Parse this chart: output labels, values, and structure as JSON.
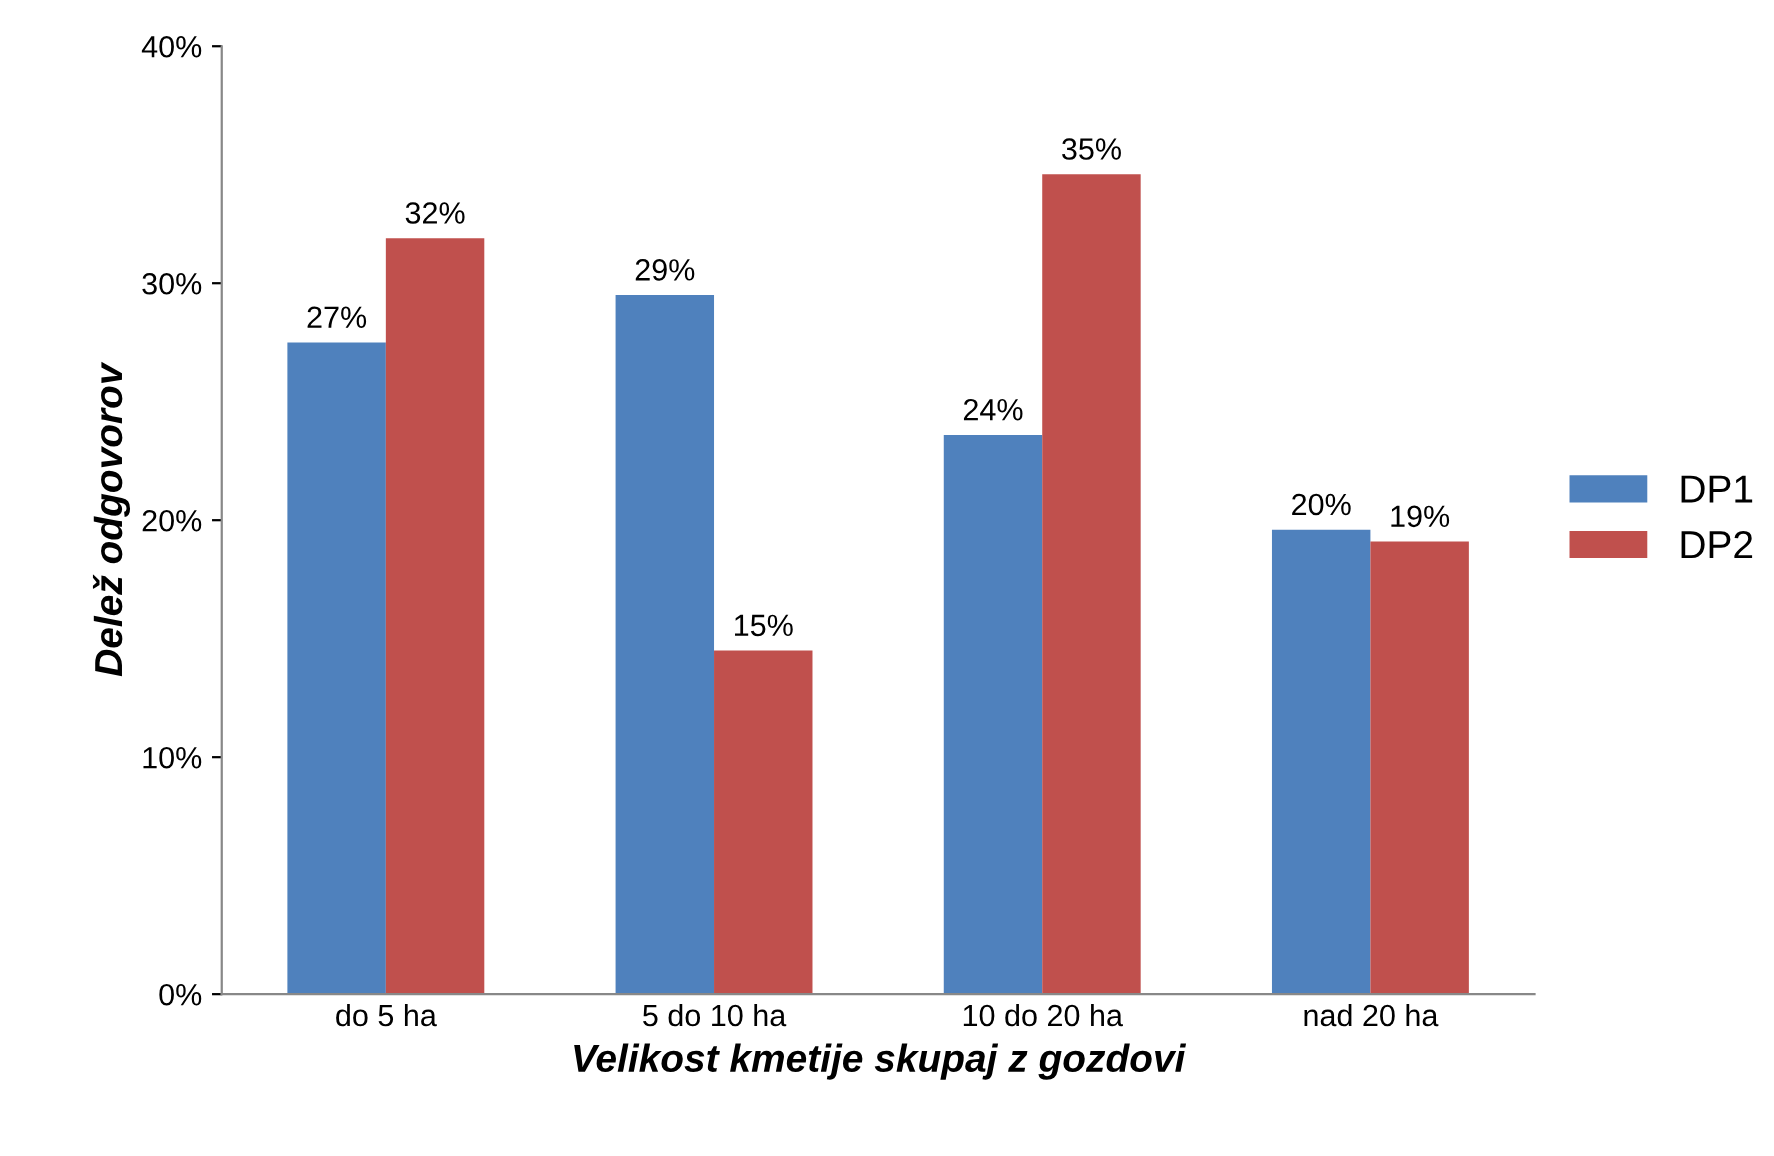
{
  "chart_data": {
    "type": "bar",
    "xlabel": "Velikost kmetije skupaj z gozdovi",
    "ylabel": "Delež odgovorov",
    "categories": [
      "do 5 ha",
      "5 do 10 ha",
      "10 do 20 ha",
      "nad 20 ha"
    ],
    "series": [
      {
        "name": "DP1",
        "color": "#4f81bd",
        "values": [
          27.5,
          29.5,
          23.6,
          19.6
        ],
        "value_labels": [
          "27%",
          "29%",
          "24%",
          "20%"
        ]
      },
      {
        "name": "DP2",
        "color": "#c0504d",
        "values": [
          31.9,
          14.5,
          34.6,
          19.1
        ],
        "value_labels": [
          "32%",
          "15%",
          "35%",
          "19%"
        ]
      }
    ],
    "ylim": [
      0,
      40
    ],
    "yticks": [
      {
        "value": 0,
        "label": "0%"
      },
      {
        "value": 10,
        "label": "10%"
      },
      {
        "value": 20,
        "label": "20%"
      },
      {
        "value": 30,
        "label": "30%"
      },
      {
        "value": 40,
        "label": "40%"
      }
    ],
    "grid": false,
    "legend": "right"
  }
}
